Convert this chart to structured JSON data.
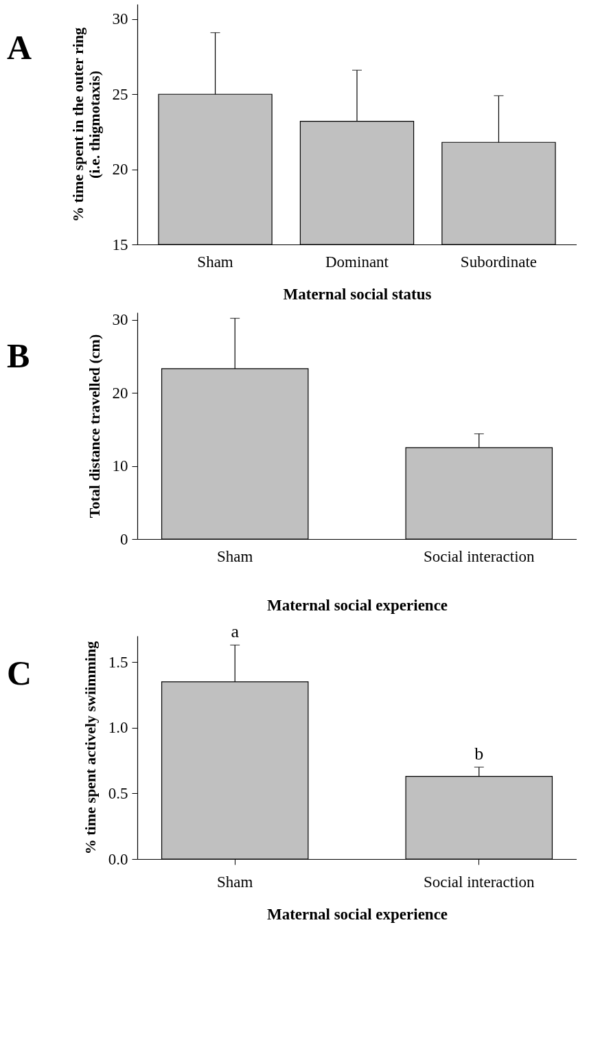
{
  "chart_data": [
    {
      "type": "bar",
      "title": "A",
      "xlabel": "Maternal social status",
      "ylabel": "% time spent in the outer ring\n(i.e. thigmotaxis)",
      "categories": [
        "Sham",
        "Dominant",
        "Subordinate"
      ],
      "values": [
        25.0,
        23.2,
        21.8
      ],
      "errors": [
        4.1,
        3.4,
        3.1
      ],
      "color": "#c0c0c0",
      "ylim": [
        15,
        31
      ],
      "yticks": [
        15,
        20,
        25,
        30
      ]
    },
    {
      "type": "bar",
      "title": "B",
      "xlabel": "Maternal social experience",
      "ylabel": "Total distance travelled (cm)",
      "categories": [
        "Sham",
        "Social interaction"
      ],
      "values": [
        23.3,
        12.5
      ],
      "errors": [
        6.9,
        1.9
      ],
      "color": "#c0c0c0",
      "ylim": [
        0,
        31
      ],
      "yticks": [
        0,
        10,
        20,
        30
      ]
    },
    {
      "type": "bar",
      "title": "C",
      "xlabel": "Maternal social experience",
      "ylabel": "% time spent actively swiimming",
      "categories": [
        "Sham",
        "Social interaction"
      ],
      "values": [
        1.35,
        0.63
      ],
      "errors": [
        0.28,
        0.07
      ],
      "color": "#c0c0c0",
      "ylim": [
        0,
        1.7
      ],
      "yticks": [
        {
          "value": 0,
          "label": "0.0"
        },
        0.5,
        {
          "value": 1,
          "label": "1.0"
        },
        1.5
      ],
      "annotations": [
        {
          "text": "a",
          "x": "Sham",
          "y": 1.63
        },
        {
          "text": "b",
          "x": "Social interaction",
          "y": 0.7
        }
      ]
    }
  ]
}
